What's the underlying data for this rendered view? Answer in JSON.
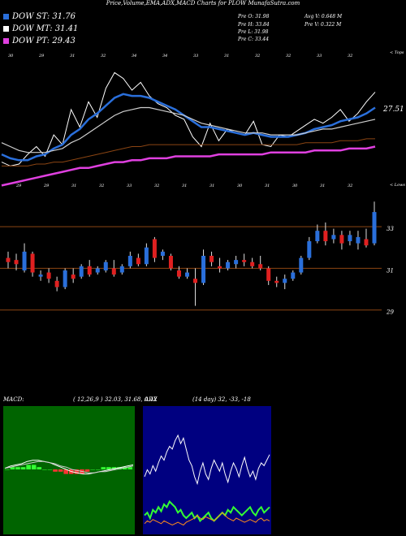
{
  "title": "Price,Volume,EMA,ADX,MACD Charts for PLOW MunafaSutra.com",
  "legend": [
    {
      "label": "DOW ST: 31.76",
      "color": "#2a6fdb"
    },
    {
      "label": "DOW MT: 31.41",
      "color": "#ffffff"
    },
    {
      "label": "DOW PT: 29.43",
      "color": "#e040e0"
    }
  ],
  "stats": {
    "pre_o": "Pre  O: 31.98",
    "pre_h": "Pre  H: 33.84",
    "pre_l": "Pre  L: 31.98",
    "pre_c": "Pre  C: 33.44",
    "avg_v": "Avg V: 0.648  M",
    "pre_v": "Pre  V: 0.322  M"
  },
  "colors": {
    "up": "#2a6fdb",
    "down": "#e02020",
    "ema_short": "#2a6fdb",
    "ema_mid": "#cfcfcf",
    "ema_long": "#8b4513",
    "ema_pt": "#e040e0",
    "macd_bg": "#006400",
    "adx_bg": "#000080",
    "grid": "#8b4513"
  },
  "chart_data": [
    {
      "type": "line",
      "name": "price-ema-panel",
      "top_label": "< Tops",
      "bottom_label": "< Lows",
      "last_price_label": "27.51",
      "top_tick_labels": [
        "30",
        "29",
        "31",
        "32",
        "34",
        "34",
        "33",
        "31",
        "32",
        "32",
        "33",
        "32"
      ],
      "bottom_tick_labels": [
        "29",
        "29",
        "31",
        "32",
        "33",
        "32",
        "31",
        "31",
        "30",
        "31",
        "30",
        "31",
        "32"
      ],
      "series": [
        {
          "values": [
            29.8,
            29.6,
            29.7,
            30.2,
            30.6,
            30.1,
            31.2,
            30.7,
            32.5,
            31.6,
            32.9,
            32.1,
            33.6,
            34.4,
            34.1,
            33.5,
            33.9,
            33.2,
            32.8,
            32.6,
            32.2,
            32.0,
            31.1,
            30.6,
            31.8,
            30.9,
            31.5,
            31.3,
            31.2,
            31.9,
            30.7,
            30.6,
            31.2,
            31.1,
            31.4,
            31.7,
            32.0,
            31.8,
            32.1,
            32.5,
            31.9,
            32.3,
            32.9,
            33.4
          ]
        },
        {
          "values": [
            30.2,
            30.0,
            29.9,
            29.9,
            30.1,
            30.2,
            30.5,
            30.7,
            31.2,
            31.5,
            32.0,
            32.3,
            32.7,
            33.1,
            33.3,
            33.2,
            33.2,
            33.1,
            32.9,
            32.7,
            32.5,
            32.2,
            31.9,
            31.6,
            31.6,
            31.5,
            31.4,
            31.3,
            31.2,
            31.3,
            31.2,
            31.1,
            31.1,
            31.1,
            31.2,
            31.3,
            31.5,
            31.6,
            31.7,
            31.9,
            32.0,
            32.1,
            32.3,
            32.6
          ]
        },
        {
          "values": [
            30.8,
            30.6,
            30.4,
            30.3,
            30.3,
            30.3,
            30.4,
            30.5,
            30.8,
            31.0,
            31.3,
            31.6,
            31.9,
            32.2,
            32.4,
            32.5,
            32.6,
            32.6,
            32.5,
            32.4,
            32.3,
            32.2,
            32.0,
            31.8,
            31.7,
            31.6,
            31.5,
            31.4,
            31.3,
            31.3,
            31.3,
            31.2,
            31.2,
            31.2,
            31.2,
            31.3,
            31.4,
            31.5,
            31.5,
            31.6,
            31.7,
            31.8,
            31.9,
            32.0
          ]
        },
        {
          "values": [
            29.6,
            29.6,
            29.6,
            29.6,
            29.7,
            29.7,
            29.8,
            29.8,
            29.9,
            30.0,
            30.1,
            30.2,
            30.3,
            30.4,
            30.5,
            30.6,
            30.6,
            30.7,
            30.7,
            30.7,
            30.7,
            30.7,
            30.7,
            30.7,
            30.7,
            30.7,
            30.7,
            30.7,
            30.7,
            30.7,
            30.7,
            30.7,
            30.7,
            30.7,
            30.7,
            30.8,
            30.8,
            30.8,
            30.8,
            30.9,
            30.9,
            30.9,
            31.0,
            31.0
          ]
        },
        {
          "values": [
            28.6,
            28.7,
            28.8,
            28.9,
            29.0,
            29.1,
            29.2,
            29.3,
            29.4,
            29.5,
            29.5,
            29.6,
            29.7,
            29.8,
            29.8,
            29.9,
            29.9,
            30.0,
            30.0,
            30.0,
            30.1,
            30.1,
            30.1,
            30.1,
            30.1,
            30.2,
            30.2,
            30.2,
            30.2,
            30.2,
            30.2,
            30.3,
            30.3,
            30.3,
            30.3,
            30.3,
            30.4,
            30.4,
            30.4,
            30.4,
            30.5,
            30.5,
            30.5,
            30.6
          ]
        }
      ]
    },
    {
      "type": "bar",
      "name": "candles-panel",
      "y_tick_labels": [
        "33",
        "31",
        "29"
      ],
      "candles": [
        {
          "o": 31.5,
          "c": 31.3,
          "h": 31.8,
          "l": 31.0
        },
        {
          "o": 31.4,
          "c": 31.2,
          "h": 31.7,
          "l": 30.9
        },
        {
          "o": 30.9,
          "c": 31.8,
          "h": 32.2,
          "l": 30.8
        },
        {
          "o": 31.7,
          "c": 30.8,
          "h": 31.8,
          "l": 30.6
        },
        {
          "o": 30.6,
          "c": 30.7,
          "h": 30.9,
          "l": 30.4
        },
        {
          "o": 30.8,
          "c": 30.5,
          "h": 31.0,
          "l": 30.3
        },
        {
          "o": 30.4,
          "c": 30.1,
          "h": 30.6,
          "l": 29.9
        },
        {
          "o": 30.1,
          "c": 30.9,
          "h": 31.0,
          "l": 30.0
        },
        {
          "o": 30.7,
          "c": 30.5,
          "h": 31.0,
          "l": 30.3
        },
        {
          "o": 30.6,
          "c": 31.1,
          "h": 31.2,
          "l": 30.5
        },
        {
          "o": 31.1,
          "c": 30.7,
          "h": 31.4,
          "l": 30.6
        },
        {
          "o": 30.8,
          "c": 31.0,
          "h": 31.1,
          "l": 30.7
        },
        {
          "o": 30.9,
          "c": 31.3,
          "h": 31.4,
          "l": 30.8
        },
        {
          "o": 31.0,
          "c": 30.7,
          "h": 31.4,
          "l": 30.6
        },
        {
          "o": 30.8,
          "c": 31.1,
          "h": 31.2,
          "l": 30.7
        },
        {
          "o": 31.1,
          "c": 31.6,
          "h": 31.8,
          "l": 31.0
        },
        {
          "o": 31.5,
          "c": 31.2,
          "h": 31.7,
          "l": 31.1
        },
        {
          "o": 31.2,
          "c": 32.0,
          "h": 32.2,
          "l": 31.1
        },
        {
          "o": 32.4,
          "c": 31.5,
          "h": 32.5,
          "l": 31.3
        },
        {
          "o": 31.6,
          "c": 31.8,
          "h": 31.9,
          "l": 31.4
        },
        {
          "o": 31.6,
          "c": 31.0,
          "h": 31.7,
          "l": 30.9
        },
        {
          "o": 30.9,
          "c": 30.6,
          "h": 31.1,
          "l": 30.5
        },
        {
          "o": 30.6,
          "c": 30.8,
          "h": 31.0,
          "l": 30.5
        },
        {
          "o": 30.5,
          "c": 30.3,
          "h": 31.0,
          "l": 29.2
        },
        {
          "o": 30.3,
          "c": 31.6,
          "h": 31.9,
          "l": 30.2
        },
        {
          "o": 31.6,
          "c": 31.3,
          "h": 31.8,
          "l": 31.1
        },
        {
          "o": 31.1,
          "c": 31.0,
          "h": 31.5,
          "l": 30.8
        },
        {
          "o": 31.0,
          "c": 31.3,
          "h": 31.4,
          "l": 30.9
        },
        {
          "o": 31.2,
          "c": 31.4,
          "h": 31.6,
          "l": 31.0
        },
        {
          "o": 31.4,
          "c": 31.3,
          "h": 31.7,
          "l": 31.1
        },
        {
          "o": 31.3,
          "c": 31.1,
          "h": 31.5,
          "l": 31.0
        },
        {
          "o": 31.2,
          "c": 31.0,
          "h": 31.6,
          "l": 30.9
        },
        {
          "o": 31.0,
          "c": 30.4,
          "h": 31.1,
          "l": 30.2
        },
        {
          "o": 30.4,
          "c": 30.3,
          "h": 30.6,
          "l": 30.1
        },
        {
          "o": 30.3,
          "c": 30.5,
          "h": 30.7,
          "l": 30.0
        },
        {
          "o": 30.5,
          "c": 30.8,
          "h": 30.9,
          "l": 30.4
        },
        {
          "o": 30.8,
          "c": 31.5,
          "h": 31.6,
          "l": 30.7
        },
        {
          "o": 31.5,
          "c": 32.3,
          "h": 32.5,
          "l": 31.4
        },
        {
          "o": 32.3,
          "c": 32.8,
          "h": 33.1,
          "l": 32.2
        },
        {
          "o": 32.8,
          "c": 32.3,
          "h": 33.2,
          "l": 32.1
        },
        {
          "o": 32.4,
          "c": 32.6,
          "h": 32.9,
          "l": 32.2
        },
        {
          "o": 32.6,
          "c": 32.2,
          "h": 32.8,
          "l": 31.9
        },
        {
          "o": 32.3,
          "c": 32.6,
          "h": 32.8,
          "l": 32.1
        },
        {
          "o": 32.2,
          "c": 32.5,
          "h": 32.8,
          "l": 31.9
        },
        {
          "o": 32.4,
          "c": 32.1,
          "h": 32.9,
          "l": 32.0
        },
        {
          "o": 32.2,
          "c": 33.7,
          "h": 34.2,
          "l": 32.1
        }
      ]
    },
    {
      "type": "line",
      "name": "macd-panel",
      "label": "MACD:",
      "params": "( 12,26,9 ) 32.03,  31.68,  0.42",
      "series": [
        {
          "values": [
            0.1,
            0.3,
            0.4,
            0.5,
            0.7,
            0.8,
            0.8,
            0.7,
            0.6,
            0.4,
            0.2,
            0.0,
            -0.2,
            -0.3,
            -0.4,
            -0.4,
            -0.3,
            -0.2,
            -0.1,
            0.0,
            0.1,
            0.2,
            0.3,
            0.4
          ]
        },
        {
          "values": [
            0.1,
            0.2,
            0.3,
            0.4,
            0.5,
            0.6,
            0.7,
            0.7,
            0.6,
            0.5,
            0.3,
            0.2,
            0.0,
            -0.1,
            -0.2,
            -0.3,
            -0.3,
            -0.2,
            -0.2,
            -0.1,
            0.0,
            0.1,
            0.2,
            0.3
          ]
        }
      ],
      "histogram": [
        0.0,
        0.1,
        0.1,
        0.1,
        0.2,
        0.2,
        0.1,
        0.0,
        0.0,
        -0.1,
        -0.1,
        -0.2,
        -0.2,
        -0.2,
        -0.2,
        -0.1,
        0.0,
        0.0,
        0.1,
        0.1,
        0.1,
        0.1,
        0.1,
        0.1
      ]
    },
    {
      "type": "line",
      "name": "adx-panel",
      "label": "ADX",
      "params": "(14  day) 32,  -33,  -18",
      "series": [
        {
          "values": [
            40,
            45,
            42,
            48,
            44,
            50,
            55,
            52,
            58,
            62,
            60,
            66,
            70,
            64,
            68,
            60,
            52,
            48,
            40,
            35,
            44,
            50,
            42,
            38,
            46,
            52,
            48,
            44,
            50,
            42,
            36,
            44,
            50,
            46,
            40,
            48,
            54,
            46,
            40,
            44,
            38,
            46,
            50,
            48,
            52,
            56
          ]
        },
        {
          "values": [
            12,
            14,
            10,
            16,
            14,
            18,
            15,
            20,
            18,
            22,
            20,
            18,
            14,
            16,
            12,
            10,
            12,
            14,
            10,
            12,
            8,
            10,
            12,
            14,
            10,
            8,
            10,
            12,
            14,
            12,
            16,
            14,
            18,
            16,
            14,
            12,
            14,
            16,
            18,
            14,
            12,
            16,
            18,
            14,
            16,
            18
          ]
        },
        {
          "values": [
            6,
            8,
            7,
            9,
            8,
            7,
            6,
            8,
            7,
            6,
            5,
            6,
            7,
            6,
            5,
            7,
            8,
            9,
            10,
            12,
            10,
            9,
            11,
            10,
            9,
            8,
            10,
            12,
            14,
            12,
            10,
            9,
            8,
            10,
            9,
            8,
            7,
            8,
            9,
            8,
            7,
            9,
            10,
            8,
            9,
            8
          ]
        }
      ]
    }
  ]
}
